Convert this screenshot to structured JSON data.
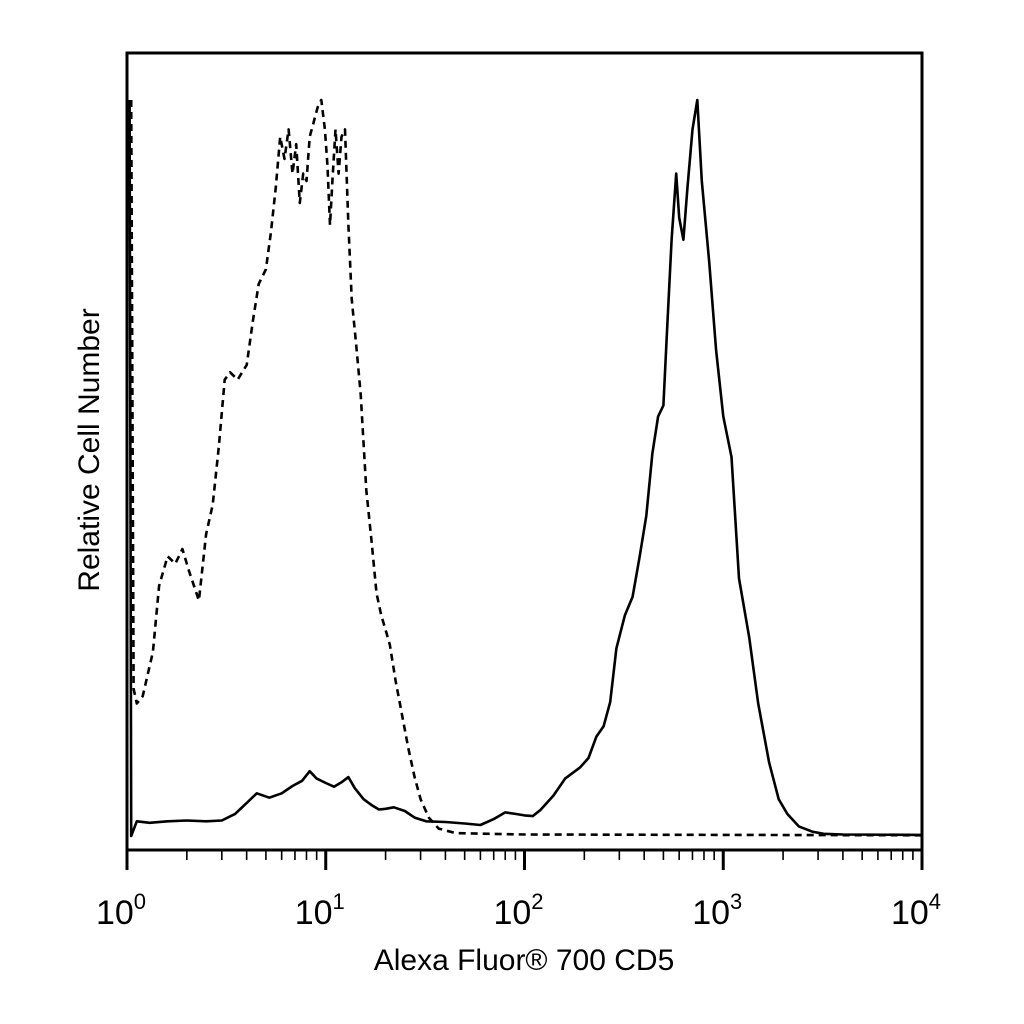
{
  "chart_data": {
    "type": "line",
    "title": "",
    "xlabel": "Alexa Fluor® 700 CD5",
    "ylabel": "Relative Cell Number",
    "x_scale": "log",
    "xlim": [
      1,
      10000
    ],
    "ylim": [
      0,
      100
    ],
    "grid": false,
    "legend": "none",
    "x_ticks": [
      {
        "value": 1,
        "base": "10",
        "exp": "0"
      },
      {
        "value": 10,
        "base": "10",
        "exp": "1"
      },
      {
        "value": 100,
        "base": "10",
        "exp": "2"
      },
      {
        "value": 1000,
        "base": "10",
        "exp": "3"
      },
      {
        "value": 10000,
        "base": "10",
        "exp": "4"
      }
    ],
    "series": [
      {
        "style": "dashed",
        "color": "#000000",
        "points": [
          [
            1.05,
            100
          ],
          [
            1.08,
            20
          ],
          [
            1.12,
            18
          ],
          [
            1.2,
            19
          ],
          [
            1.35,
            25
          ],
          [
            1.45,
            34
          ],
          [
            1.6,
            38
          ],
          [
            1.75,
            37
          ],
          [
            1.9,
            39
          ],
          [
            2.05,
            36
          ],
          [
            2.3,
            32
          ],
          [
            2.5,
            41
          ],
          [
            2.7,
            45
          ],
          [
            2.9,
            53
          ],
          [
            3.1,
            62
          ],
          [
            3.3,
            63
          ],
          [
            3.6,
            62
          ],
          [
            4.0,
            64
          ],
          [
            4.3,
            70
          ],
          [
            4.6,
            75
          ],
          [
            5.0,
            77
          ],
          [
            5.3,
            82
          ],
          [
            5.6,
            88
          ],
          [
            5.9,
            95
          ],
          [
            6.2,
            92
          ],
          [
            6.5,
            96
          ],
          [
            6.8,
            90
          ],
          [
            7.1,
            94
          ],
          [
            7.4,
            86
          ],
          [
            7.7,
            90
          ],
          [
            8.0,
            89
          ],
          [
            8.3,
            95
          ],
          [
            8.7,
            97
          ],
          [
            9.1,
            99
          ],
          [
            9.5,
            100
          ],
          [
            9.9,
            96
          ],
          [
            10.2,
            91
          ],
          [
            10.5,
            83
          ],
          [
            10.8,
            89
          ],
          [
            11.2,
            96
          ],
          [
            11.6,
            90
          ],
          [
            12.0,
            95
          ],
          [
            12.5,
            96
          ],
          [
            13.0,
            83
          ],
          [
            13.5,
            73
          ],
          [
            14.2,
            67
          ],
          [
            15.0,
            60
          ],
          [
            16.0,
            47
          ],
          [
            17.0,
            40
          ],
          [
            18.0,
            33
          ],
          [
            19.0,
            30
          ],
          [
            20.0,
            28
          ],
          [
            21.0,
            26
          ],
          [
            22.5,
            21
          ],
          [
            24.0,
            17
          ],
          [
            26.0,
            12
          ],
          [
            28.0,
            8
          ],
          [
            30.0,
            5
          ],
          [
            33.0,
            2.5
          ],
          [
            37.0,
            1
          ],
          [
            45.0,
            0.4
          ],
          [
            100.0,
            0.2
          ],
          [
            1000.0,
            0.15
          ],
          [
            10000.0,
            0.1
          ]
        ]
      },
      {
        "style": "solid",
        "color": "#000000",
        "points": [
          [
            1.03,
            100
          ],
          [
            1.05,
            0
          ],
          [
            1.12,
            2
          ],
          [
            1.3,
            1.8
          ],
          [
            1.6,
            2.0
          ],
          [
            2.0,
            2.1
          ],
          [
            2.5,
            2.0
          ],
          [
            3.0,
            2.1
          ],
          [
            3.5,
            3.0
          ],
          [
            4.0,
            4.5
          ],
          [
            4.5,
            5.8
          ],
          [
            5.2,
            5.2
          ],
          [
            6.0,
            5.8
          ],
          [
            6.8,
            6.8
          ],
          [
            7.6,
            7.5
          ],
          [
            8.3,
            8.8
          ],
          [
            9.0,
            7.8
          ],
          [
            10.0,
            7.2
          ],
          [
            11.0,
            6.7
          ],
          [
            12.0,
            7.3
          ],
          [
            13.0,
            8.0
          ],
          [
            14.0,
            6.5
          ],
          [
            15.5,
            5.0
          ],
          [
            17.0,
            4.2
          ],
          [
            18.5,
            3.6
          ],
          [
            20.0,
            3.7
          ],
          [
            22.0,
            3.9
          ],
          [
            25.0,
            3.4
          ],
          [
            28.0,
            2.5
          ],
          [
            32.0,
            2.0
          ],
          [
            40.0,
            1.9
          ],
          [
            50.0,
            1.7
          ],
          [
            60.0,
            1.5
          ],
          [
            70.0,
            2.3
          ],
          [
            80.0,
            3.2
          ],
          [
            90.0,
            3.0
          ],
          [
            100.0,
            2.8
          ],
          [
            110.0,
            2.7
          ],
          [
            120.0,
            3.5
          ],
          [
            140.0,
            5.5
          ],
          [
            160.0,
            7.8
          ],
          [
            190.0,
            9.3
          ],
          [
            210.0,
            10.6
          ],
          [
            230.0,
            13.5
          ],
          [
            250.0,
            14.9
          ],
          [
            270.0,
            18.2
          ],
          [
            290.0,
            25.5
          ],
          [
            320.0,
            30.0
          ],
          [
            350.0,
            32.5
          ],
          [
            380.0,
            38.0
          ],
          [
            410.0,
            43.5
          ],
          [
            440.0,
            52.0
          ],
          [
            470.0,
            57.0
          ],
          [
            500.0,
            58.5
          ],
          [
            520.0,
            68.0
          ],
          [
            550.0,
            81.0
          ],
          [
            580.0,
            90.0
          ],
          [
            600.0,
            84.0
          ],
          [
            630.0,
            81.0
          ],
          [
            660.0,
            88.0
          ],
          [
            700.0,
            96.0
          ],
          [
            740.0,
            100.0
          ],
          [
            780.0,
            89.0
          ],
          [
            850.0,
            78.0
          ],
          [
            920.0,
            66.0
          ],
          [
            1000.0,
            57.0
          ],
          [
            1100.0,
            51.5
          ],
          [
            1200.0,
            35.0
          ],
          [
            1350.0,
            27.0
          ],
          [
            1500.0,
            18.0
          ],
          [
            1700.0,
            10.0
          ],
          [
            1900.0,
            5.0
          ],
          [
            2100.0,
            3.0
          ],
          [
            2400.0,
            1.3
          ],
          [
            2800.0,
            0.6
          ],
          [
            3200.0,
            0.3
          ],
          [
            4000.0,
            0.2
          ],
          [
            10000.0,
            0.15
          ]
        ]
      }
    ]
  }
}
